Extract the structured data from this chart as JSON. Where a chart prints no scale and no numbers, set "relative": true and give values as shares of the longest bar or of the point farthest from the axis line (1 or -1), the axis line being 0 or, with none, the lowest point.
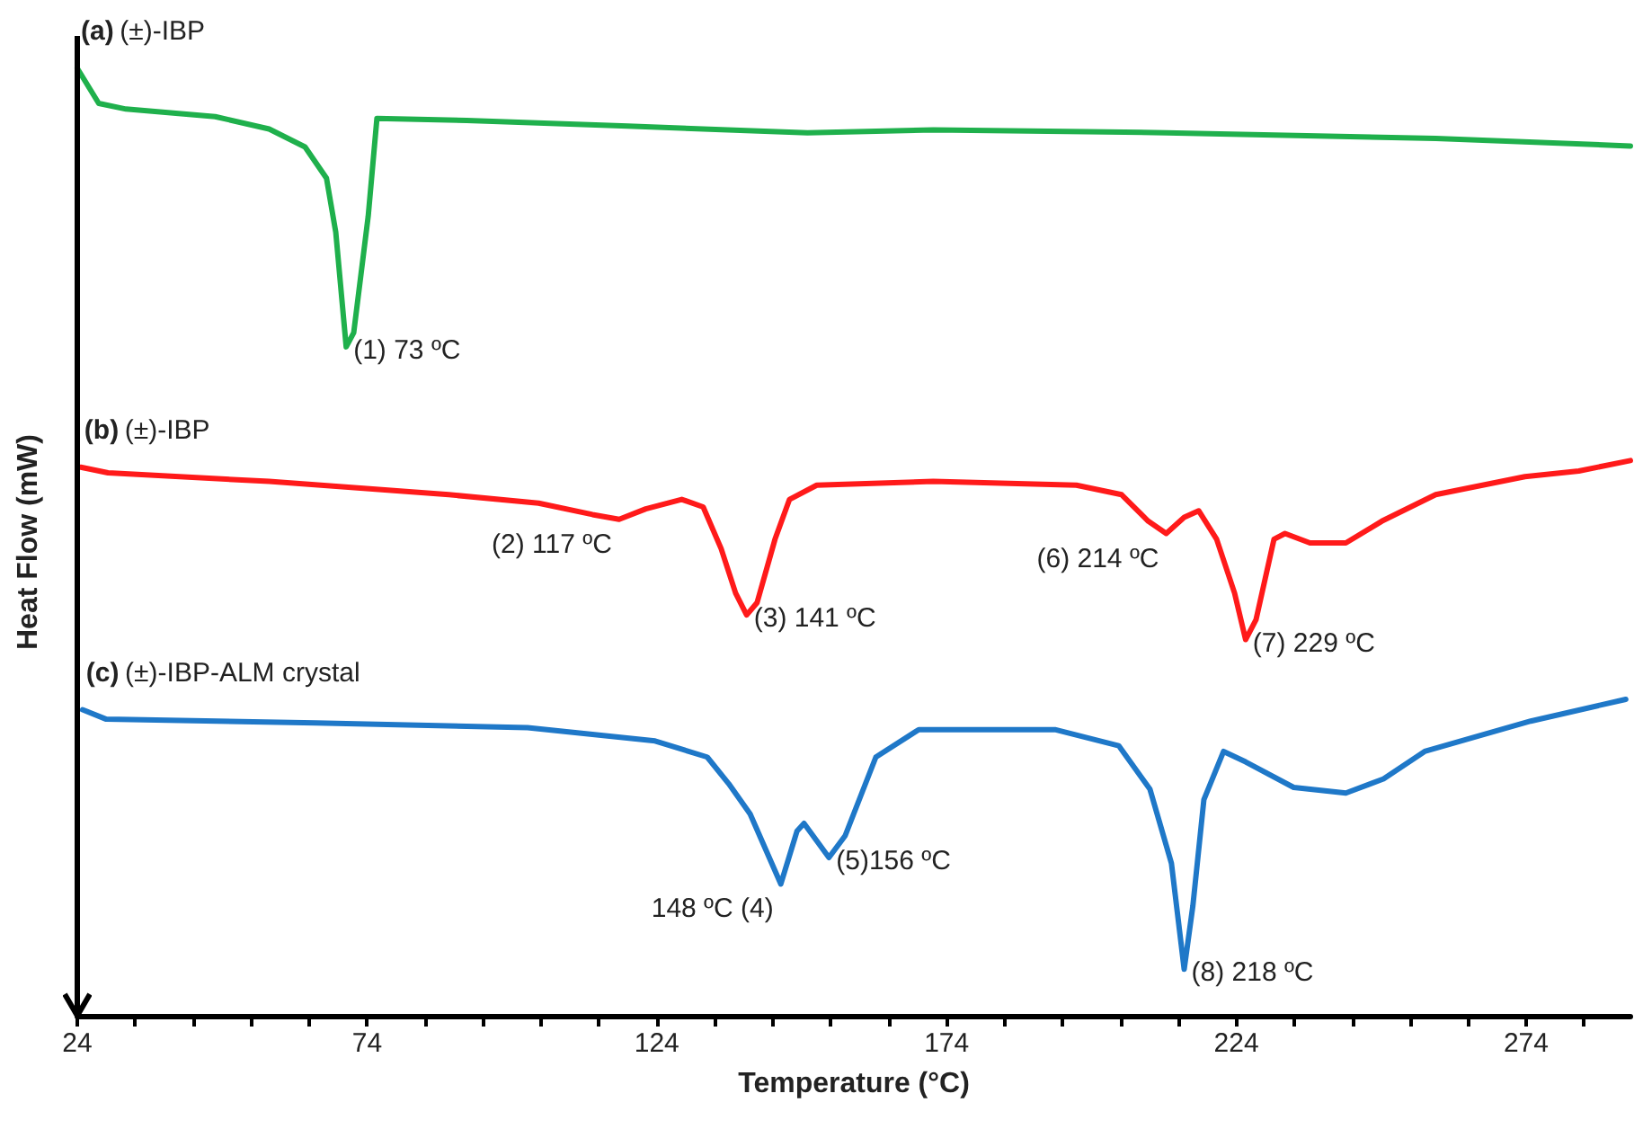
{
  "chart_data": {
    "type": "line",
    "relative": true,
    "xlabel": "Temperature (°C)",
    "ylabel": "Heat Flow (mW)",
    "xlim": [
      24,
      292
    ],
    "xticks": [
      24,
      {
        "value": 34,
        "label": null
      },
      {
        "value": 44,
        "label": null
      },
      {
        "value": 54,
        "label": null
      },
      {
        "value": 64,
        "label": null
      },
      74,
      {
        "value": 84,
        "label": null
      },
      {
        "value": 94,
        "label": null
      },
      {
        "value": 104,
        "label": null
      },
      {
        "value": 114,
        "label": null
      },
      124,
      {
        "value": 134,
        "label": null
      },
      {
        "value": 144,
        "label": null
      },
      {
        "value": 154,
        "label": null
      },
      {
        "value": 164,
        "label": null
      },
      174,
      {
        "value": 184,
        "label": null
      },
      {
        "value": 194,
        "label": null
      },
      {
        "value": 204,
        "label": null
      },
      {
        "value": 214,
        "label": null
      },
      224,
      {
        "value": 234,
        "label": null
      },
      {
        "value": 244,
        "label": null
      },
      {
        "value": 254,
        "label": null
      },
      {
        "value": 264,
        "label": null
      },
      274,
      {
        "value": 284,
        "label": null
      }
    ],
    "grid": false,
    "legend": false,
    "marker": "none",
    "line_style": "solid",
    "series": [
      {
        "name": "(a) (±)-IBP",
        "color": "#1fb04c",
        "x": [
          24,
          27.7,
          32.4,
          47.8,
          57.1,
          63.3,
          67.0,
          68.6,
          70.4,
          71.7,
          74.2,
          75.7,
          91.2,
          119.0,
          150,
          171.7,
          211.9,
          258.4,
          292
        ],
        "values": [
          1.0,
          0.963,
          0.957,
          0.949,
          0.936,
          0.917,
          0.884,
          0.827,
          0.706,
          0.721,
          0.844,
          0.947,
          0.945,
          0.939,
          0.932,
          0.935,
          0.932,
          0.926,
          0.918
        ]
      },
      {
        "name": "(b) (±)-IBP",
        "color": "#ff1a1a",
        "x": [
          24.6,
          29.3,
          57.1,
          88.1,
          103.6,
          112.9,
          117.5,
          122.1,
          128.3,
          132.0,
          135.1,
          137.6,
          139.5,
          141.3,
          144.4,
          146.9,
          151.6,
          171.7,
          196.4,
          204.2,
          208.8,
          211.9,
          215.0,
          217.5,
          220.6,
          223.7,
          225.6,
          227.4,
          230.5,
          232.4,
          236.7,
          242.9,
          249.1,
          258.4,
          273.8,
          283.1,
          292
        ],
        "values": [
          0.579,
          0.573,
          0.564,
          0.55,
          0.541,
          0.529,
          0.524,
          0.535,
          0.545,
          0.537,
          0.493,
          0.446,
          0.423,
          0.436,
          0.503,
          0.545,
          0.56,
          0.564,
          0.56,
          0.55,
          0.522,
          0.509,
          0.526,
          0.533,
          0.503,
          0.446,
          0.397,
          0.418,
          0.503,
          0.509,
          0.499,
          0.499,
          0.522,
          0.55,
          0.569,
          0.575,
          0.586
        ]
      },
      {
        "name": "(c) (±)-IBP-ALM crystal",
        "color": "#1f78c8",
        "x": [
          24.9,
          29.0,
          65.2,
          101.7,
          123.7,
          132.7,
          136.4,
          140.1,
          145.4,
          148.2,
          149.4,
          153.7,
          156.5,
          161.8,
          169.2,
          192.7,
          203.7,
          209.1,
          212.8,
          215.0,
          216.5,
          218.4,
          221.8,
          225.6,
          233.9,
          242.9,
          249.4,
          256.5,
          274.8,
          291.2
        ],
        "values": [
          0.323,
          0.313,
          0.309,
          0.304,
          0.29,
          0.273,
          0.245,
          0.213,
          0.139,
          0.195,
          0.203,
          0.167,
          0.19,
          0.273,
          0.302,
          0.302,
          0.285,
          0.239,
          0.161,
          0.049,
          0.116,
          0.228,
          0.279,
          0.268,
          0.241,
          0.235,
          0.25,
          0.279,
          0.311,
          0.334
        ]
      }
    ],
    "annotations": [
      {
        "text": "(1) 73 ºC",
        "x": 70.4,
        "y": 0.706
      },
      {
        "text": "(2) 117 ºC",
        "x": 117.5,
        "y": 0.524
      },
      {
        "text": "(3) 141 ºC",
        "x": 139.5,
        "y": 0.423
      },
      {
        "text": "(6) 214 ºC",
        "x": 211.9,
        "y": 0.509
      },
      {
        "text": "(7) 229 ºC",
        "x": 225.6,
        "y": 0.397
      },
      {
        "text": "148 ºC (4)",
        "x": 145.4,
        "y": 0.139
      },
      {
        "text": "(5)156 ºC",
        "x": 153.7,
        "y": 0.167
      },
      {
        "text": "(8) 218 ºC",
        "x": 215.0,
        "y": 0.049
      }
    ]
  }
}
